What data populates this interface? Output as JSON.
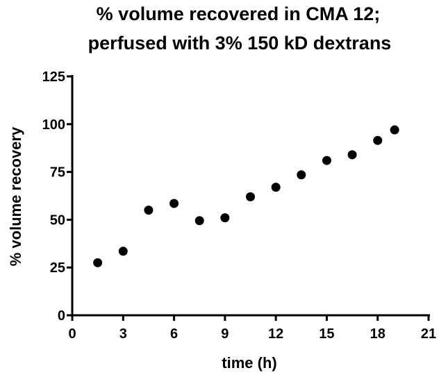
{
  "chart_data": {
    "type": "scatter",
    "title": [
      "% volume recovered in CMA 12;",
      "perfused with 3% 150 kD dextrans"
    ],
    "xlabel": "time (h)",
    "ylabel": "% volume recovery",
    "xlim": [
      0,
      21
    ],
    "ylim": [
      0,
      125
    ],
    "xticks": [
      0,
      3,
      6,
      9,
      12,
      15,
      18,
      21
    ],
    "yticks": [
      0,
      25,
      50,
      75,
      100,
      125
    ],
    "grid": false,
    "series": [
      {
        "x": [
          1.5,
          3,
          4.5,
          6,
          7.5,
          9,
          10.5,
          12,
          13.5,
          15,
          16.5,
          18,
          19
        ],
        "y": [
          27.5,
          33.5,
          55,
          58.5,
          49.5,
          51,
          62,
          67,
          73.5,
          81,
          84,
          91.5,
          97
        ],
        "color": "#000000",
        "marker": "circle"
      }
    ]
  }
}
